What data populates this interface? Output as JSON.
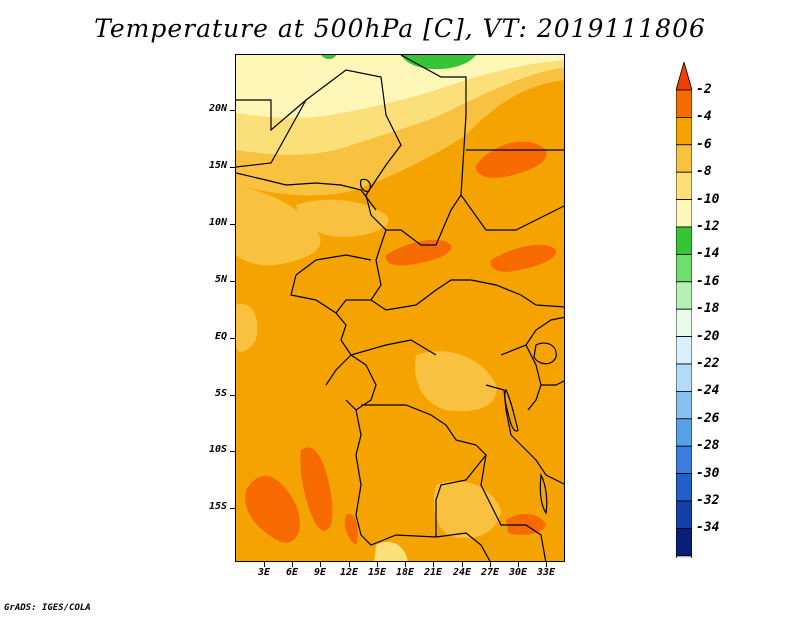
{
  "title": "Temperature at 500hPa [C], VT: 2019111806",
  "footer": "GrADS: IGES/COLA",
  "map": {
    "y_ticks": [
      "20N",
      "15N",
      "10N",
      "5N",
      "EQ",
      "5S",
      "10S",
      "15S"
    ],
    "x_ticks": [
      "3E",
      "6E",
      "9E",
      "12E",
      "15E",
      "18E",
      "21E",
      "24E",
      "27E",
      "30E",
      "33E"
    ]
  },
  "colorbar": {
    "labels": [
      "-2",
      "-4",
      "-6",
      "-8",
      "-10",
      "-12",
      "-14",
      "-16",
      "-18",
      "-20",
      "-22",
      "-24",
      "-26",
      "-28",
      "-30",
      "-32",
      "-34"
    ],
    "colors": {
      "top": "#f04000",
      "bins": [
        "#f76a00",
        "#f5a300",
        "#f8c140",
        "#fbe07a",
        "#fff7b8",
        "#37c437",
        "#6fde6f",
        "#b6f0b6",
        "#e9fbe9",
        "#d9f0fd",
        "#b4dcf8",
        "#86c1f0",
        "#5aa0e6",
        "#3d7ddd",
        "#235fc8",
        "#1440a8"
      ],
      "bottom": "#0a1d7a",
      "tail": "#e6e6fa"
    }
  }
}
